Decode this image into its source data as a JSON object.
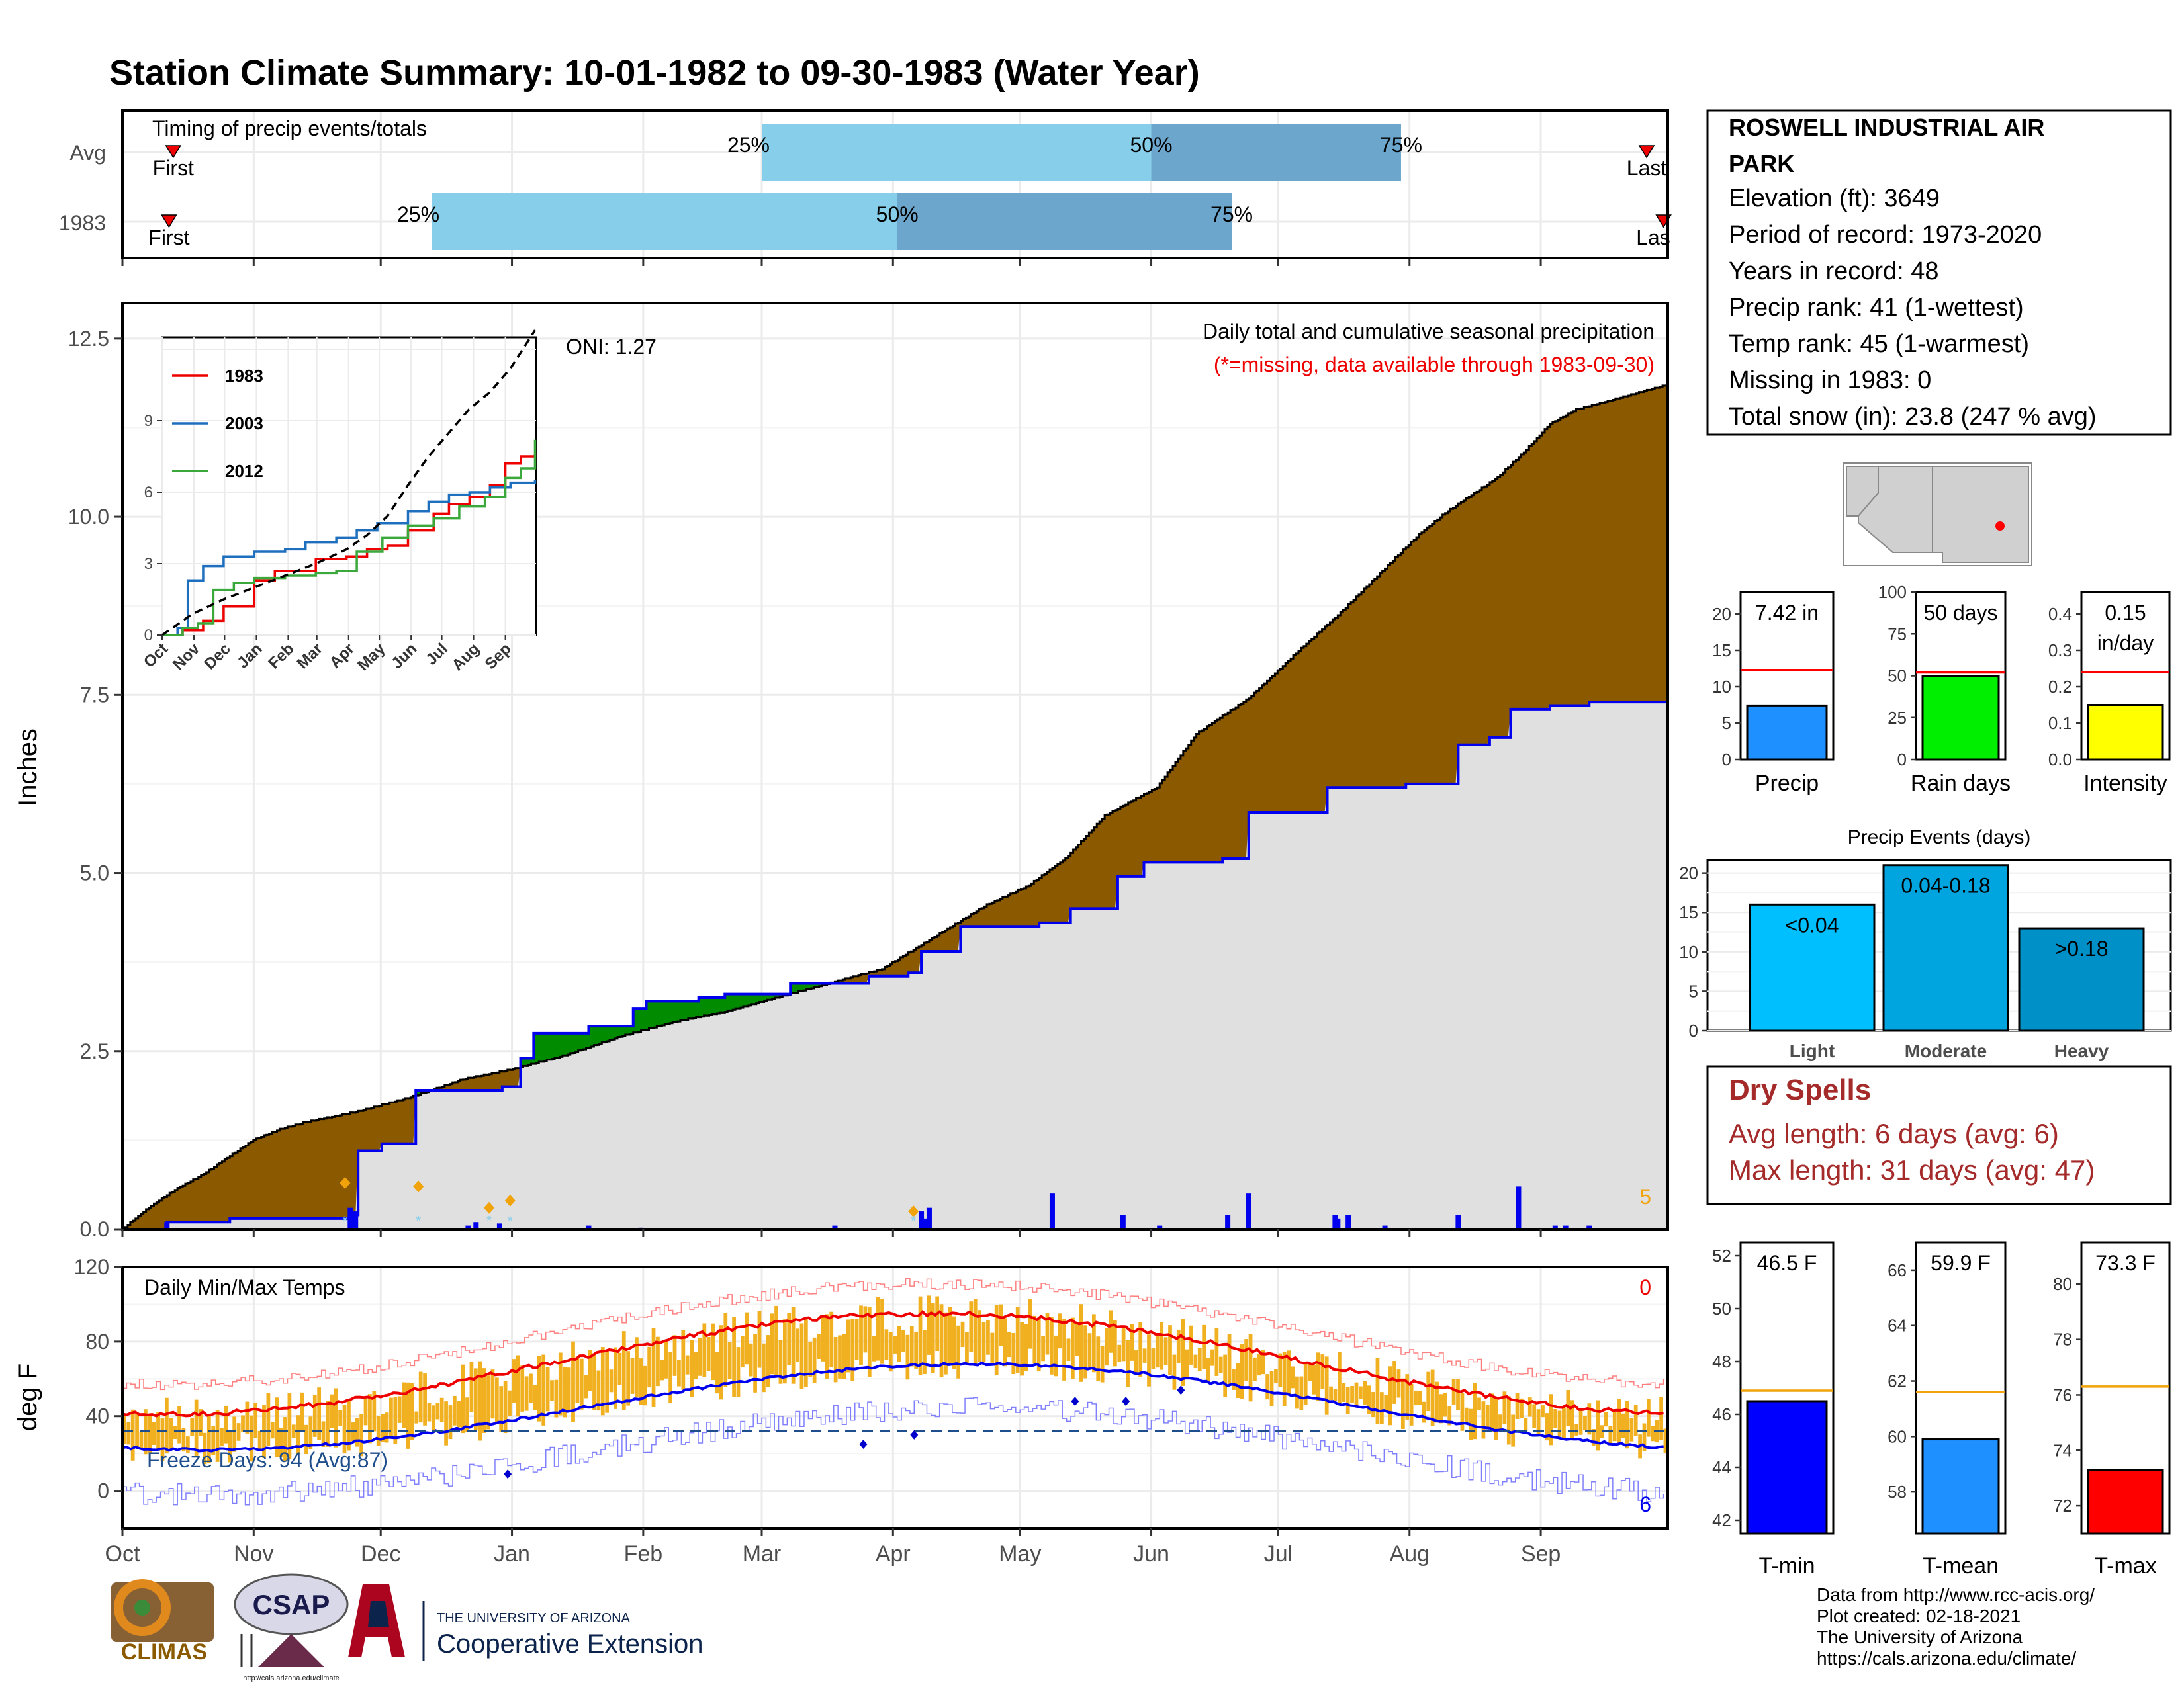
{
  "title": "Station Climate Summary: 10-01-1982 to 09-30-1983 (Water Year)",
  "colors": {
    "title": "#8b2b0f",
    "light_blue": "#87ceeb",
    "mid_blue": "#6ca6cd",
    "brown": "#8b5a00",
    "green": "#008b00",
    "gray_fill": "#e0e0e0",
    "blue_line": "#0000ee",
    "red": "#ee0000",
    "orange": "#f0a30a",
    "dry_spell": "#a52a2a"
  },
  "timing": {
    "label": "Timing of precip events/totals",
    "rows": [
      {
        "name": "Avg",
        "first_label": "First",
        "last_label": "Last",
        "p25_label": "25%",
        "p50_label": "50%",
        "p75_label": "75%",
        "first_day": 12,
        "p25_day": 151,
        "p50_day": 243,
        "p75_day": 302,
        "last_day": 360
      },
      {
        "name": "1983",
        "first_label": "First",
        "last_label": "Las",
        "p25_label": "25%",
        "p50_label": "50%",
        "p75_label": "75%",
        "first_day": 11,
        "p25_day": 73,
        "p50_day": 183,
        "p75_day": 262,
        "last_day": 364
      }
    ]
  },
  "precip": {
    "ylabel": "Inches",
    "yticks": [
      "0.0",
      "2.5",
      "5.0",
      "7.5",
      "10.0",
      "12.5"
    ],
    "ylim": [
      0,
      13
    ],
    "caption": "Daily total and cumulative seasonal precipitation",
    "missing_note": "(*=missing, data available through 1983-09-30)",
    "oni_label": "ONI: 1.27",
    "corner_count": "5",
    "avg_cum_points": [
      [
        0,
        0
      ],
      [
        10,
        0.3
      ],
      [
        20,
        0.55
      ],
      [
        30,
        0.75
      ],
      [
        40,
        1.0
      ],
      [
        50,
        1.25
      ],
      [
        60,
        1.4
      ],
      [
        70,
        1.5
      ],
      [
        90,
        1.65
      ],
      [
        110,
        1.85
      ],
      [
        130,
        2.1
      ],
      [
        150,
        2.25
      ],
      [
        170,
        2.45
      ],
      [
        190,
        2.7
      ],
      [
        210,
        2.9
      ],
      [
        230,
        3.05
      ],
      [
        250,
        3.25
      ],
      [
        270,
        3.45
      ],
      [
        290,
        3.65
      ],
      [
        310,
        4.1
      ],
      [
        330,
        4.55
      ],
      [
        345,
        4.8
      ],
      [
        360,
        5.2
      ],
      [
        375,
        5.8
      ],
      [
        395,
        6.2
      ],
      [
        410,
        6.95
      ],
      [
        430,
        7.45
      ],
      [
        450,
        8.15
      ],
      [
        465,
        8.65
      ],
      [
        480,
        9.2
      ],
      [
        495,
        9.75
      ],
      [
        505,
        10.05
      ],
      [
        515,
        10.3
      ],
      [
        525,
        10.55
      ],
      [
        535,
        10.9
      ],
      [
        545,
        11.3
      ],
      [
        555,
        11.5
      ],
      [
        575,
        11.7
      ],
      [
        590,
        11.85
      ]
    ],
    "obs_cum_points": [
      [
        0,
        0
      ],
      [
        17,
        0.1
      ],
      [
        41,
        0.15
      ],
      [
        87,
        0.2
      ],
      [
        90,
        1.1
      ],
      [
        99,
        1.2
      ],
      [
        112,
        1.95
      ],
      [
        145,
        2.0
      ],
      [
        152,
        2.4
      ],
      [
        157,
        2.75
      ],
      [
        178,
        2.85
      ],
      [
        195,
        3.1
      ],
      [
        200,
        3.2
      ],
      [
        220,
        3.25
      ],
      [
        230,
        3.3
      ],
      [
        255,
        3.45
      ],
      [
        285,
        3.55
      ],
      [
        300,
        3.6
      ],
      [
        305,
        3.9
      ],
      [
        320,
        4.25
      ],
      [
        350,
        4.3
      ],
      [
        362,
        4.5
      ],
      [
        380,
        4.95
      ],
      [
        390,
        5.15
      ],
      [
        420,
        5.2
      ],
      [
        430,
        5.85
      ],
      [
        460,
        6.2
      ],
      [
        480,
        6.2
      ],
      [
        490,
        6.25
      ],
      [
        510,
        6.8
      ],
      [
        522,
        6.9
      ],
      [
        530,
        7.3
      ],
      [
        545,
        7.35
      ],
      [
        560,
        7.4
      ],
      [
        590,
        7.45
      ]
    ],
    "daily_bars": [
      [
        17,
        0.1
      ],
      [
        87,
        0.3
      ],
      [
        88,
        0.18
      ],
      [
        89,
        0.25
      ],
      [
        132,
        0.05
      ],
      [
        135,
        0.1
      ],
      [
        144,
        0.08
      ],
      [
        178,
        0.05
      ],
      [
        198,
        0.02
      ],
      [
        272,
        0.05
      ],
      [
        305,
        0.25
      ],
      [
        306,
        0.15
      ],
      [
        308,
        0.3
      ],
      [
        355,
        0.5
      ],
      [
        382,
        0.2
      ],
      [
        396,
        0.05
      ],
      [
        422,
        0.2
      ],
      [
        430,
        0.5
      ],
      [
        463,
        0.2
      ],
      [
        464,
        0.15
      ],
      [
        468,
        0.2
      ],
      [
        482,
        0.05
      ],
      [
        510,
        0.2
      ],
      [
        533,
        0.6
      ],
      [
        547,
        0.05
      ],
      [
        551,
        0.05
      ],
      [
        560,
        0.05
      ]
    ],
    "snow_markers": [
      [
        85,
        0.65
      ],
      [
        113,
        0.6
      ],
      [
        140,
        0.3
      ],
      [
        148,
        0.4
      ],
      [
        302,
        0.25
      ]
    ],
    "inset": {
      "yticks": [
        "0",
        "3",
        "6",
        "9"
      ],
      "xticks": [
        "Oct",
        "Nov",
        "Dec",
        "Jan",
        "Feb",
        "Mar",
        "Apr",
        "May",
        "Jun",
        "Jul",
        "Aug",
        "Sep"
      ],
      "ylim": [
        0,
        12.5
      ],
      "series": [
        {
          "name": "1983",
          "color": "#ee0000",
          "points": [
            [
              0,
              0
            ],
            [
              20,
              0.2
            ],
            [
              40,
              0.6
            ],
            [
              60,
              1.2
            ],
            [
              90,
              2.3
            ],
            [
              110,
              2.7
            ],
            [
              150,
              3.2
            ],
            [
              180,
              3.3
            ],
            [
              200,
              3.6
            ],
            [
              220,
              3.75
            ],
            [
              240,
              4.4
            ],
            [
              265,
              5.1
            ],
            [
              280,
              5.5
            ],
            [
              300,
              5.8
            ],
            [
              320,
              6.3
            ],
            [
              335,
              7.2
            ],
            [
              350,
              7.5
            ],
            [
              364,
              7.6
            ]
          ]
        },
        {
          "name": "2003",
          "color": "#1f6fbf",
          "points": [
            [
              0,
              0
            ],
            [
              15,
              0.3
            ],
            [
              25,
              2.3
            ],
            [
              40,
              2.9
            ],
            [
              60,
              3.3
            ],
            [
              90,
              3.5
            ],
            [
              120,
              3.6
            ],
            [
              140,
              3.9
            ],
            [
              170,
              4.1
            ],
            [
              190,
              4.4
            ],
            [
              210,
              4.7
            ],
            [
              240,
              5.2
            ],
            [
              260,
              5.6
            ],
            [
              280,
              5.9
            ],
            [
              300,
              6.0
            ],
            [
              320,
              6.2
            ],
            [
              340,
              6.4
            ],
            [
              364,
              6.5
            ]
          ]
        },
        {
          "name": "2012",
          "color": "#3aa83a",
          "points": [
            [
              0,
              0
            ],
            [
              20,
              0.3
            ],
            [
              35,
              0.5
            ],
            [
              50,
              1.9
            ],
            [
              70,
              2.2
            ],
            [
              90,
              2.4
            ],
            [
              120,
              2.5
            ],
            [
              150,
              2.6
            ],
            [
              170,
              2.7
            ],
            [
              190,
              3.5
            ],
            [
              215,
              4.1
            ],
            [
              240,
              4.6
            ],
            [
              265,
              4.9
            ],
            [
              290,
              5.4
            ],
            [
              315,
              5.8
            ],
            [
              335,
              6.6
            ],
            [
              350,
              7.0
            ],
            [
              364,
              8.2
            ]
          ]
        }
      ],
      "avg_points": [
        [
          0,
          0
        ],
        [
          30,
          0.9
        ],
        [
          60,
          1.5
        ],
        [
          90,
          2.0
        ],
        [
          120,
          2.5
        ],
        [
          150,
          3.0
        ],
        [
          180,
          3.6
        ],
        [
          200,
          4.2
        ],
        [
          220,
          5.0
        ],
        [
          240,
          6.3
        ],
        [
          260,
          7.5
        ],
        [
          280,
          8.5
        ],
        [
          300,
          9.5
        ],
        [
          320,
          10.2
        ],
        [
          340,
          11.2
        ],
        [
          364,
          12.8
        ]
      ]
    }
  },
  "temps": {
    "ylabel": "deg F",
    "label": "Daily Min/Max Temps",
    "yticks": [
      "0",
      "40",
      "80",
      "120"
    ],
    "ylim": [
      -20,
      120
    ],
    "freeze_label": "Freeze Days: 94 (Avg:87)",
    "freeze_line": 32,
    "top_count": "0",
    "bottom_count": "6",
    "xticks": [
      "Oct",
      "Nov",
      "Dec",
      "Jan",
      "Feb",
      "Mar",
      "Apr",
      "May",
      "Jun",
      "Jul",
      "Aug",
      "Sep"
    ]
  },
  "station": {
    "name_line1": "ROSWELL INDUSTRIAL AIR",
    "name_line2": "PARK",
    "elevation": "Elevation (ft): 3649",
    "period": "Period of record: 1973-2020",
    "years": "Years in record: 48",
    "precip_rank": "Precip rank: 41 (1-wettest)",
    "temp_rank": "Temp rank: 45 (1-warmest)",
    "missing": "Missing in 1983: 0",
    "snow": "Total snow (in): 23.8 (247 % avg)"
  },
  "mini_bars": [
    {
      "label": "Precip",
      "value_label": "7.42 in",
      "value": 7.42,
      "avg": 12.3,
      "ylim": [
        0,
        23
      ],
      "yticks": [
        "0",
        "5",
        "10",
        "15",
        "20"
      ],
      "tickvals": [
        0,
        5,
        10,
        15,
        20
      ],
      "color": "#1e90ff"
    },
    {
      "label": "Rain days",
      "value_label": "50 days",
      "value": 50,
      "avg": 52,
      "ylim": [
        0,
        100
      ],
      "yticks": [
        "0",
        "25",
        "50",
        "75",
        "100"
      ],
      "tickvals": [
        0,
        25,
        50,
        75,
        100
      ],
      "color": "#00ee00"
    },
    {
      "label": "Intensity",
      "value_label": "0.15",
      "value_label2": "in/day",
      "value": 0.15,
      "avg": 0.24,
      "ylim": [
        0,
        0.46
      ],
      "yticks": [
        "0.0",
        "0.1",
        "0.2",
        "0.3",
        "0.4"
      ],
      "tickvals": [
        0,
        0.1,
        0.2,
        0.3,
        0.4
      ],
      "color": "#ffff00"
    }
  ],
  "precip_events": {
    "title": "Precip Events (days)",
    "yticks": [
      "0",
      "5",
      "10",
      "15",
      "20"
    ],
    "categories": [
      "Light",
      "Moderate",
      "Heavy"
    ],
    "values": [
      16,
      21,
      13
    ],
    "bar_labels": [
      "<0.04",
      "0.04-0.18",
      ">0.18"
    ],
    "colors": [
      "#00bfff",
      "#00a5e0",
      "#0090c8"
    ],
    "ylim": [
      0,
      21
    ]
  },
  "dry_spells": {
    "title": "Dry Spells",
    "avg_length": "Avg length: 6 days (avg: 6)",
    "max_length": "Max length: 31 days (avg: 47)"
  },
  "temp_bars": [
    {
      "label": "T-min",
      "value_label": "46.5 F",
      "value": 46.5,
      "avg": 46.9,
      "ylim": [
        41.5,
        52.5
      ],
      "yticks": [
        "42",
        "44",
        "46",
        "48",
        "50",
        "52"
      ],
      "tickvals": [
        42,
        44,
        46,
        48,
        50,
        52
      ],
      "color": "#0000ff"
    },
    {
      "label": "T-mean",
      "value_label": "59.9 F",
      "value": 59.9,
      "avg": 61.6,
      "ylim": [
        56.5,
        67
      ],
      "yticks": [
        "58",
        "60",
        "62",
        "64",
        "66"
      ],
      "tickvals": [
        58,
        60,
        62,
        64,
        66
      ],
      "color": "#1e90ff"
    },
    {
      "label": "T-max",
      "value_label": "73.3 F",
      "value": 73.3,
      "avg": 76.3,
      "ylim": [
        71,
        81.5
      ],
      "yticks": [
        "72",
        "74",
        "76",
        "78",
        "80"
      ],
      "tickvals": [
        72,
        74,
        76,
        78,
        80
      ],
      "color": "#ff0000"
    }
  ],
  "footer": {
    "line1": "Data from http://www.rcc-acis.org/",
    "line2": "Plot created: 02-18-2021",
    "line3": "The University of Arizona",
    "line4": "https://cals.arizona.edu/climate/",
    "climas": "CLIMAS",
    "csap": "CSAP",
    "csap_url": "http://cals.arizona.edu/climate",
    "ua_small": "THE UNIVERSITY OF ARIZONA",
    "ua_big": "Cooperative Extension"
  }
}
